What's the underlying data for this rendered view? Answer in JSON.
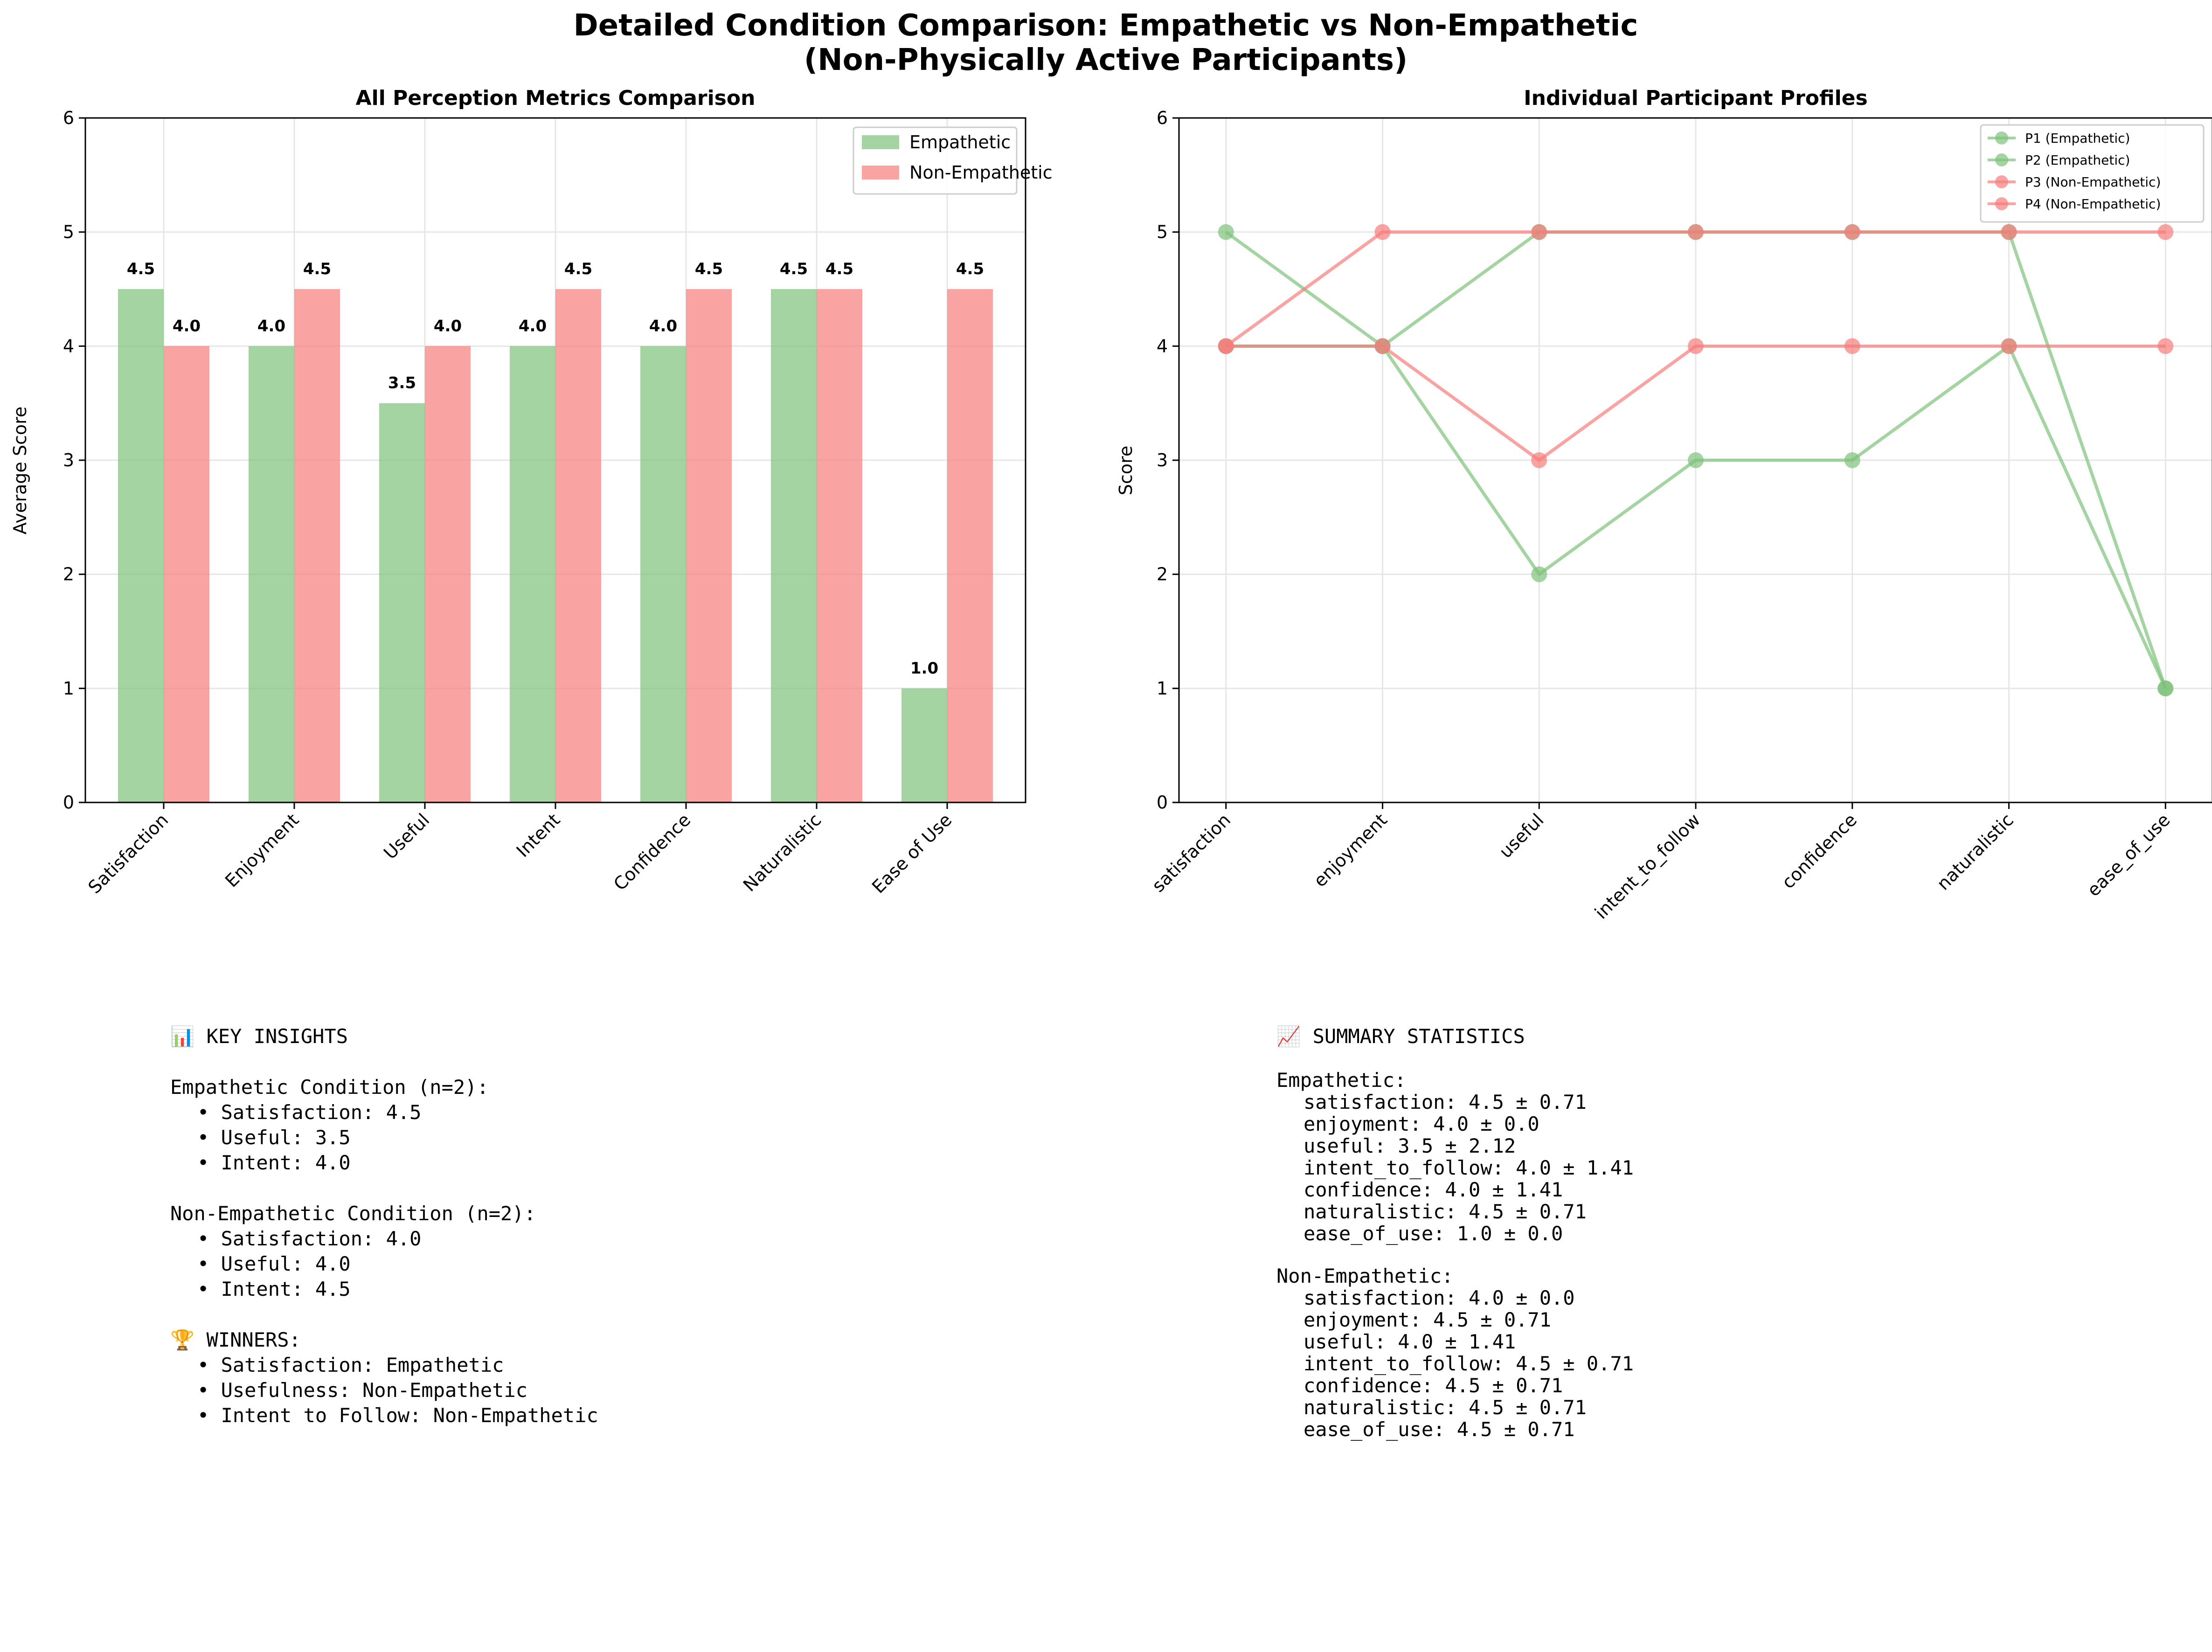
{
  "page": {
    "title_line1": "Detailed Condition Comparison: Empathetic vs Non-Empathetic",
    "title_line2": "(Non-Physically Active Participants)"
  },
  "colors": {
    "empathetic": "#7ec27a",
    "non_empathetic": "#f67c7c"
  },
  "chart_data": [
    {
      "type": "bar",
      "title": "All Perception Metrics Comparison",
      "xlabel": "",
      "ylabel": "Average Score",
      "ylim": [
        0,
        6
      ],
      "yticks": [
        0,
        1,
        2,
        3,
        4,
        5,
        6
      ],
      "grid": true,
      "legend_position": "top-right",
      "categories": [
        "Satisfaction",
        "Enjoyment",
        "Useful",
        "Intent",
        "Confidence",
        "Naturalistic",
        "Ease of Use"
      ],
      "series": [
        {
          "name": "Empathetic",
          "values": [
            4.5,
            4.0,
            3.5,
            4.0,
            4.0,
            4.5,
            1.0
          ],
          "labels": [
            "4.5",
            "4.0",
            "3.5",
            "4.0",
            "4.0",
            "4.5",
            "1.0"
          ]
        },
        {
          "name": "Non-Empathetic",
          "values": [
            4.0,
            4.5,
            4.0,
            4.5,
            4.5,
            4.5,
            4.5
          ],
          "labels": [
            "4.0",
            "4.5",
            "4.0",
            "4.5",
            "4.5",
            "4.5",
            "4.5"
          ]
        }
      ]
    },
    {
      "type": "line",
      "title": "Individual Participant Profiles",
      "xlabel": "",
      "ylabel": "Score",
      "ylim": [
        0,
        6
      ],
      "yticks": [
        0,
        1,
        2,
        3,
        4,
        5,
        6
      ],
      "grid": true,
      "legend_position": "top-right",
      "categories": [
        "satisfaction",
        "enjoyment",
        "useful",
        "intent_to_follow",
        "confidence",
        "naturalistic",
        "ease_of_use"
      ],
      "series": [
        {
          "name": "P1 (Empathetic)",
          "group": "empathetic",
          "values": [
            5,
            4,
            5,
            5,
            5,
            5,
            1
          ]
        },
        {
          "name": "P2 (Empathetic)",
          "group": "empathetic",
          "values": [
            4,
            4,
            2,
            3,
            3,
            4,
            1
          ]
        },
        {
          "name": "P3 (Non-Empathetic)",
          "group": "non_empathetic",
          "values": [
            4,
            4,
            3,
            4,
            4,
            4,
            4
          ]
        },
        {
          "name": "P4 (Non-Empathetic)",
          "group": "non_empathetic",
          "values": [
            4,
            5,
            5,
            5,
            5,
            5,
            5
          ]
        }
      ]
    }
  ],
  "insights": {
    "heading": "📊 KEY INSIGHTS",
    "empathetic_heading": "Empathetic Condition (n=2):",
    "empathetic_items": [
      "• Satisfaction: 4.5",
      "• Useful: 3.5",
      "• Intent: 4.0"
    ],
    "non_empathetic_heading": "Non-Empathetic Condition (n=2):",
    "non_empathetic_items": [
      "• Satisfaction: 4.0",
      "• Useful: 4.0",
      "• Intent: 4.5"
    ],
    "winners_heading": "🏆 WINNERS:",
    "winners_items": [
      "• Satisfaction: Empathetic",
      "• Usefulness: Non-Empathetic",
      "• Intent to Follow: Non-Empathetic"
    ]
  },
  "summary": {
    "heading": "📈 SUMMARY STATISTICS",
    "empathetic_heading": "Empathetic:",
    "empathetic_items": [
      "satisfaction: 4.5 ± 0.71",
      "enjoyment: 4.0 ± 0.0",
      "useful: 3.5 ± 2.12",
      "intent_to_follow: 4.0 ± 1.41",
      "confidence: 4.0 ± 1.41",
      "naturalistic: 4.5 ± 0.71",
      "ease_of_use: 1.0 ± 0.0"
    ],
    "non_empathetic_heading": "Non-Empathetic:",
    "non_empathetic_items": [
      "satisfaction: 4.0 ± 0.0",
      "enjoyment: 4.5 ± 0.71",
      "useful: 4.0 ± 1.41",
      "intent_to_follow: 4.5 ± 0.71",
      "confidence: 4.5 ± 0.71",
      "naturalistic: 4.5 ± 0.71",
      "ease_of_use: 4.5 ± 0.71"
    ]
  }
}
